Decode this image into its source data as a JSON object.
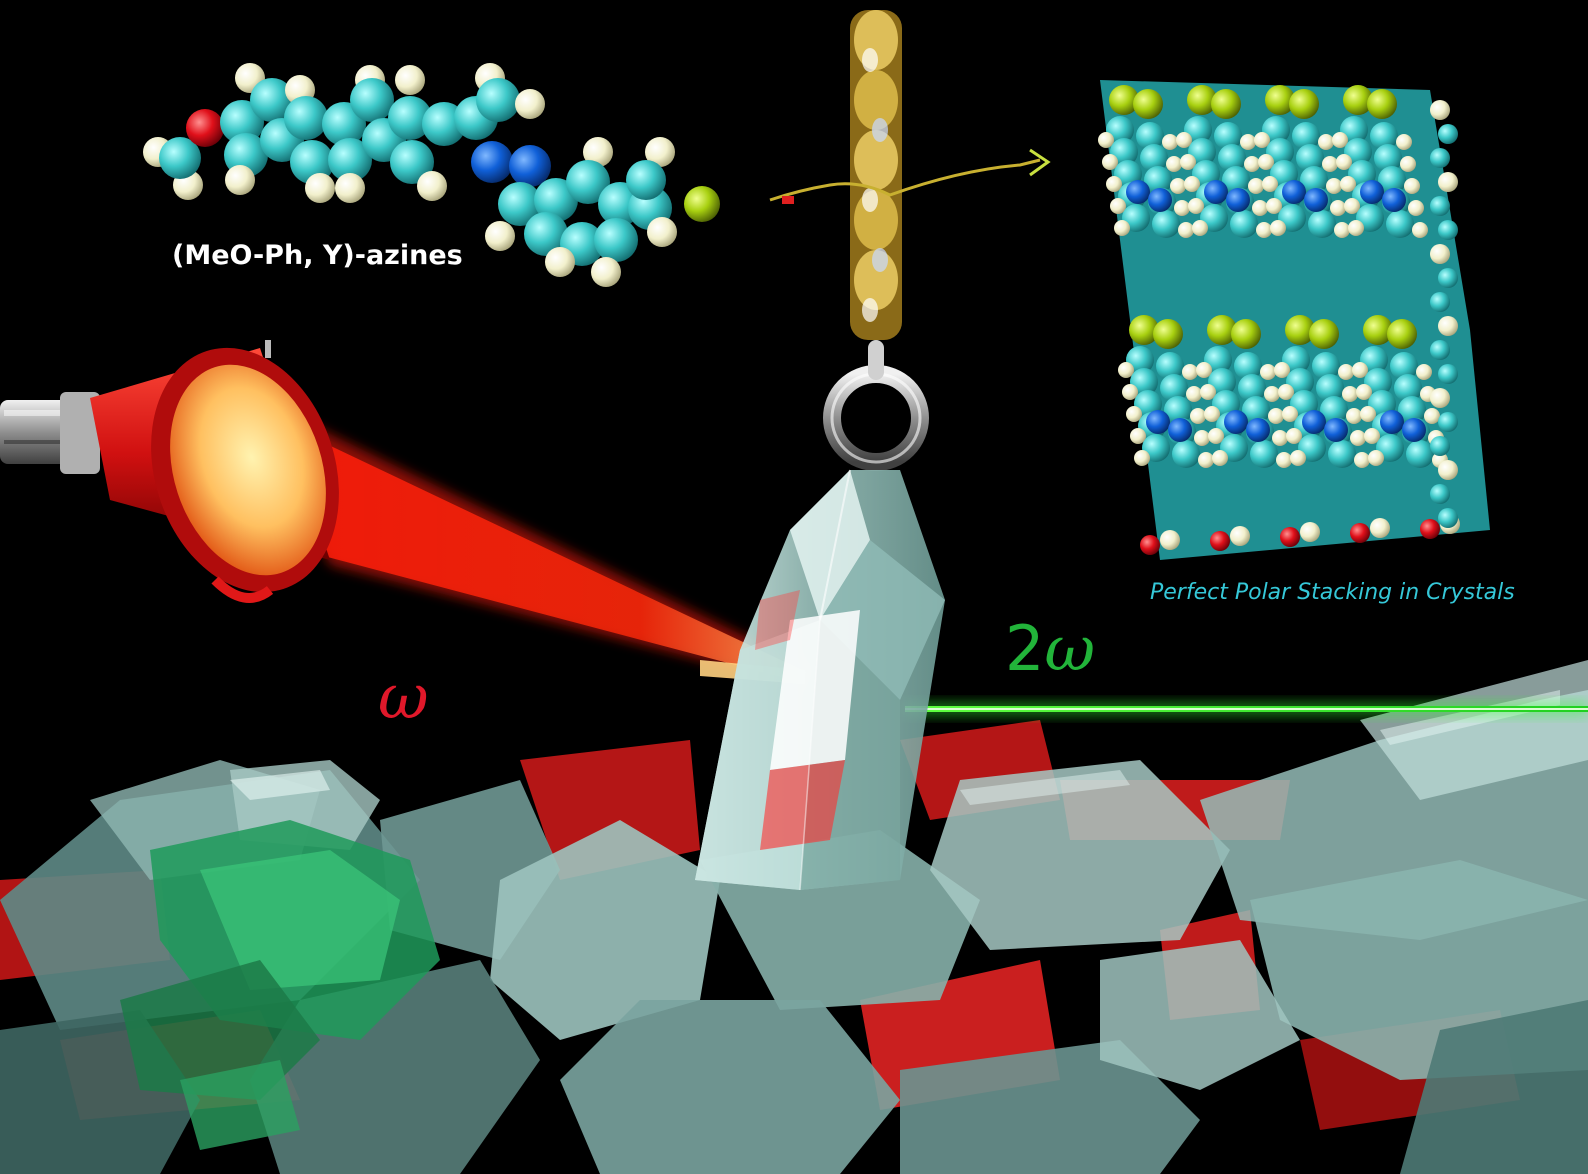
{
  "labels": {
    "molecule_caption": "(MeO-Ph, Y)-azines",
    "stacking_caption": "Perfect Polar Stacking in Crystals",
    "fundamental_label": "ω",
    "second_harmonic_prefix": "2",
    "second_harmonic_symbol": "ω"
  },
  "colors": {
    "background": "#000000",
    "carbon": "#3cc8c8",
    "hydrogen": "#f2f2d0",
    "oxygen": "#e0101a",
    "nitrogen": "#1060d8",
    "halogen": "#a8d010",
    "laser_red": "#ff2010",
    "laser_green": "#30ff30",
    "crystal": "#b8e0dc",
    "lamp_red": "#e01818",
    "chain_gold": "#c8a838"
  },
  "icons": [
    "laser-lamp-icon",
    "gold-chain-icon",
    "crystal-pendant-icon",
    "molecule-model-icon",
    "crystal-lattice-icon"
  ]
}
